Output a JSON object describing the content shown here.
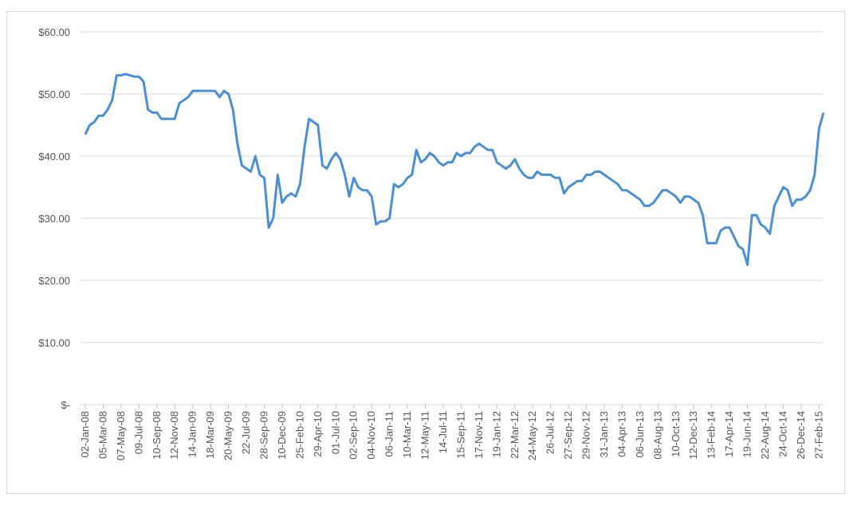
{
  "chart_data": {
    "type": "line",
    "categories": [
      "02-Jan-08",
      null,
      null,
      null,
      "05-Mar-08",
      null,
      null,
      null,
      "07-May-08",
      null,
      null,
      null,
      "09-Jul-08",
      null,
      null,
      null,
      "10-Sep-08",
      null,
      null,
      null,
      "12-Nov-08",
      null,
      null,
      null,
      "14-Jan-09",
      null,
      null,
      null,
      "18-Mar-09",
      null,
      null,
      null,
      "20-May-09",
      null,
      null,
      null,
      "22-Jul-09",
      null,
      null,
      null,
      "28-Sep-09",
      null,
      null,
      null,
      "10-Dec-09",
      null,
      null,
      null,
      "25-Feb-10",
      null,
      null,
      null,
      "29-Apr-10",
      null,
      null,
      null,
      "01-Jul-10",
      null,
      null,
      null,
      "02-Sep-10",
      null,
      null,
      null,
      "04-Nov-10",
      null,
      null,
      null,
      "06-Jan-11",
      null,
      null,
      null,
      "10-Mar-11",
      null,
      null,
      null,
      "12-May-11",
      null,
      null,
      null,
      "14-Jul-11",
      null,
      null,
      null,
      "15-Sep-11",
      null,
      null,
      null,
      "17-Nov-11",
      null,
      null,
      null,
      "19-Jan-12",
      null,
      null,
      null,
      "22-Mar-12",
      null,
      null,
      null,
      "24-May-12",
      null,
      null,
      null,
      "26-Jul-12",
      null,
      null,
      null,
      "27-Sep-12",
      null,
      null,
      null,
      "29-Nov-12",
      null,
      null,
      null,
      "31-Jan-13",
      null,
      null,
      null,
      "04-Apr-13",
      null,
      null,
      null,
      "06-Jun-13",
      null,
      null,
      null,
      "08-Aug-13",
      null,
      null,
      null,
      "10-Oct-13",
      null,
      null,
      null,
      "12-Dec-13",
      null,
      null,
      null,
      "13-Feb-14",
      null,
      null,
      null,
      "17-Apr-14",
      null,
      null,
      null,
      "19-Jun-14",
      null,
      null,
      null,
      "22-Aug-14",
      null,
      null,
      null,
      "24-Oct-14",
      null,
      null,
      null,
      "26-Dec-14",
      null,
      null,
      null,
      "27-Feb-15",
      null
    ],
    "series": [
      {
        "color": "#4a8fd3",
        "values": [
          43.5,
          45,
          45.5,
          46.5,
          46.5,
          47.5,
          49,
          53,
          53,
          53.2,
          53,
          52.8,
          52.8,
          52,
          47.5,
          47,
          47,
          46,
          46,
          46,
          46,
          48.5,
          49,
          49.5,
          50.5,
          50.5,
          50.5,
          50.5,
          50.5,
          50.5,
          49.5,
          50.5,
          50,
          47.5,
          42,
          38.5,
          38,
          37.5,
          40,
          37,
          36.5,
          28.5,
          30,
          37,
          32.5,
          33.5,
          34,
          33.5,
          35.5,
          41.5,
          46,
          45.5,
          45,
          38.5,
          38,
          39.5,
          40.5,
          39.5,
          37,
          33.5,
          36.5,
          35,
          34.5,
          34.5,
          33.5,
          29,
          29.5,
          29.5,
          30,
          35.5,
          35,
          35.5,
          36.5,
          37,
          41,
          39,
          39.5,
          40.5,
          40,
          39,
          38.5,
          39,
          39,
          40.5,
          40,
          40.5,
          40.5,
          41.5,
          42,
          41.5,
          41,
          41,
          39,
          38.5,
          38,
          38.5,
          39.5,
          38,
          37,
          36.5,
          36.5,
          37.5,
          37,
          37,
          37,
          36.5,
          36.5,
          34,
          35,
          35.5,
          36,
          36,
          37,
          37,
          37.5,
          37.5,
          37,
          36.5,
          36,
          35.5,
          34.5,
          34.5,
          34,
          33.5,
          33,
          32,
          32,
          32.5,
          33.5,
          34.5,
          34.5,
          34,
          33.5,
          32.5,
          33.5,
          33.5,
          33,
          32.5,
          30.5,
          26,
          26,
          26,
          28,
          28.5,
          28.5,
          27,
          25.5,
          25,
          22.5,
          30.5,
          30.5,
          29,
          28.5,
          27.5,
          32,
          33.5,
          35,
          34.5,
          32,
          33,
          33,
          33.5,
          34.5,
          37,
          44.5,
          47
        ]
      }
    ],
    "ylim": [
      0,
      60
    ],
    "yticks": [
      {
        "value": 0,
        "label": "$-"
      },
      {
        "value": 10,
        "label": "$10.00"
      },
      {
        "value": 20,
        "label": "$20.00"
      },
      {
        "value": 30,
        "label": "$30.00"
      },
      {
        "value": 40,
        "label": "$40.00"
      },
      {
        "value": 50,
        "label": "$50.00"
      },
      {
        "value": 60,
        "label": "$60.00"
      }
    ],
    "grid": true
  }
}
